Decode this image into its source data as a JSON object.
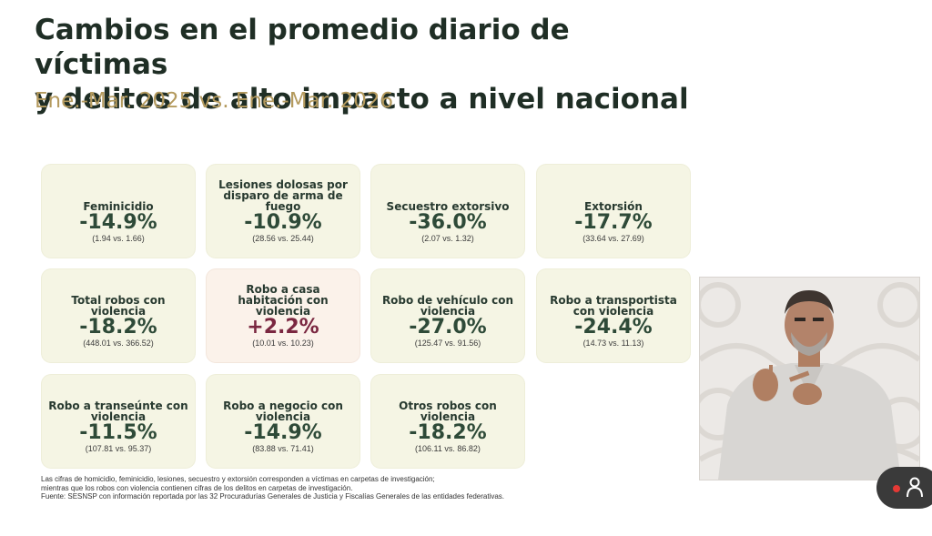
{
  "header": {
    "title_line1": "Cambios en el promedio diario de víctimas",
    "title_line2": "y delitos de alto impacto a nivel nacional",
    "subtitle": "Ene.-Mar. 2025 vs. Ene.-Mar. 2026"
  },
  "cards": [
    {
      "label": "Feminicidio",
      "value": "-14.9%",
      "detail": "(1.94 vs. 1.66)",
      "trend": "decrease"
    },
    {
      "label": "Lesiones dolosas por disparo de arma de fuego",
      "value": "-10.9%",
      "detail": "(28.56 vs. 25.44)",
      "trend": "decrease"
    },
    {
      "label": "Secuestro extorsivo",
      "value": "-36.0%",
      "detail": "(2.07 vs. 1.32)",
      "trend": "decrease"
    },
    {
      "label": "Extorsión",
      "value": "-17.7%",
      "detail": "(33.64 vs. 27.69)",
      "trend": "decrease"
    },
    {
      "label": "Total robos con violencia",
      "value": "-18.2%",
      "detail": "(448.01 vs. 366.52)",
      "trend": "decrease"
    },
    {
      "label": "Robo a casa habitación con violencia",
      "value": "+2.2%",
      "detail": "(10.01 vs. 10.23)",
      "trend": "increase"
    },
    {
      "label": "Robo de vehículo con violencia",
      "value": "-27.0%",
      "detail": "(125.47 vs. 91.56)",
      "trend": "decrease"
    },
    {
      "label": "Robo a transportista con violencia",
      "value": "-24.4%",
      "detail": "(14.73 vs. 11.13)",
      "trend": "decrease"
    },
    {
      "label": "Robo a transeúnte con violencia",
      "value": "-11.5%",
      "detail": "(107.81 vs. 95.37)",
      "trend": "decrease"
    },
    {
      "label": "Robo a negocio con violencia",
      "value": "-14.9%",
      "detail": "(83.88 vs. 71.41)",
      "trend": "decrease"
    },
    {
      "label": "Otros robos con violencia",
      "value": "-18.2%",
      "detail": "(106.11 vs. 86.82)",
      "trend": "decrease"
    }
  ],
  "footnote": {
    "line1": "Las cifras de homicidio, feminicidio, lesiones, secuestro y extorsión corresponden a víctimas en carpetas de investigación;",
    "line2": "mientras que los robos con violencia contienen cifras de los delitos en carpetas de investigación.",
    "line3": "Fuente: SESNSP con información reportada por las 32 Procuradurías Generales de Justicia y Fiscalías Generales de las entidades federativas."
  },
  "colors": {
    "title": "#1f2e25",
    "subtitle": "#b49a5e",
    "card_bg": "#f5f5e4",
    "card_increase_bg": "#fbf2ea",
    "decrease_value": "#2e4a38",
    "increase_value": "#7a2740",
    "recording_dot": "#e53935"
  },
  "overlay": {
    "icons": [
      "recording-dot-icon",
      "person-icon"
    ]
  }
}
